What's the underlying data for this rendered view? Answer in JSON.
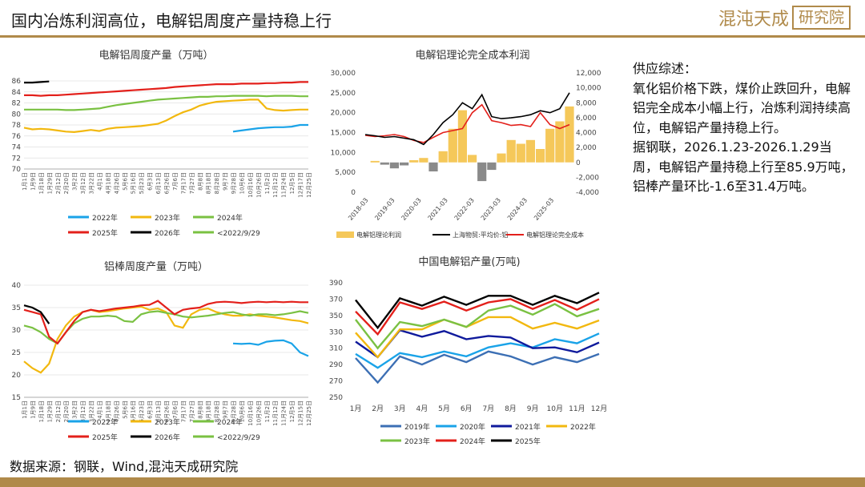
{
  "header": {
    "title": "国内冶炼利润高位，电解铝周度产量持稳上行"
  },
  "logo": {
    "part1": "混沌天成",
    "part2": "研究院"
  },
  "summary": {
    "heading": "供应综述：",
    "paragraph1": "氧化铝价格下跌，煤价止跌回升，电解铝完全成本小幅上行，冶炼利润持续高位，电解铝产量持稳上行。",
    "paragraph2": "据钢联，2026.1.23-2026.1.29当周，电解铝产量持稳上行至85.9万吨，铝棒产量环比-1.6至31.4万吨。"
  },
  "source": "数据来源：钢联，Wind,混沌天成研究院",
  "chart_data": [
    {
      "type": "line",
      "title": "电解铝周度产量（万吨）",
      "x_labels": [
        "1月1日",
        "1月9日",
        "1月18日",
        "1月29日",
        "2月12日",
        "2月20日",
        "3月2日",
        "3月12日",
        "3月22日",
        "4月1日",
        "4月18日",
        "4月26日",
        "5月6日",
        "5月16日",
        "5月23日",
        "6月3日",
        "6月13日",
        "6月26日",
        "7月6日",
        "7月17日",
        "7月27日",
        "8月8日",
        "8月18日",
        "8月28日",
        "9月7日",
        "9月28日",
        "10月6日",
        "10月16日",
        "10月26日",
        "11月2日",
        "11月12日",
        "11月24日",
        "12月5日",
        "12月17日",
        "12月25日"
      ],
      "ylim": [
        70,
        86
      ],
      "yticks": [
        70,
        72,
        74,
        76,
        78,
        80,
        82,
        84,
        86
      ],
      "series": [
        {
          "name": "2022年",
          "color": "#1aa3e8",
          "values": [
            null,
            null,
            null,
            null,
            null,
            null,
            null,
            null,
            null,
            null,
            null,
            null,
            null,
            null,
            null,
            null,
            null,
            null,
            null,
            null,
            null,
            null,
            null,
            null,
            null,
            76.8,
            77,
            77.2,
            77.4,
            77.5,
            77.6,
            77.6,
            77.7,
            78,
            78
          ]
        },
        {
          "name": "2023年",
          "color": "#f2b80f",
          "values": [
            77.5,
            77.2,
            77.3,
            77.2,
            77,
            76.8,
            76.7,
            76.9,
            77.1,
            76.9,
            77.3,
            77.5,
            77.6,
            77.7,
            77.8,
            78,
            78.2,
            78.8,
            79.6,
            80.3,
            80.8,
            81.5,
            81.9,
            82.2,
            82.3,
            82.4,
            82.5,
            82.6,
            82.6,
            81,
            80.7,
            80.6,
            80.7,
            80.8,
            80.8
          ]
        },
        {
          "name": "2024年",
          "color": "#7ac142",
          "values": [
            80.8,
            80.8,
            80.8,
            80.8,
            80.8,
            80.7,
            80.7,
            80.8,
            80.9,
            81,
            81.3,
            81.6,
            81.8,
            82,
            82.2,
            82.4,
            82.6,
            82.7,
            82.8,
            82.9,
            83,
            83.1,
            83.1,
            83.2,
            83.2,
            83.3,
            83.3,
            83.3,
            83.3,
            83.2,
            83.3,
            83.3,
            83.3,
            83.2,
            83.2
          ]
        },
        {
          "name": "2025年",
          "color": "#e3201b",
          "values": [
            83.4,
            83.4,
            83.3,
            83.4,
            83.4,
            83.5,
            83.6,
            83.7,
            83.8,
            83.9,
            84,
            84.1,
            84.2,
            84.3,
            84.4,
            84.5,
            84.6,
            84.7,
            84.9,
            85,
            85.1,
            85.2,
            85.3,
            85.4,
            85.4,
            85.4,
            85.5,
            85.5,
            85.5,
            85.6,
            85.6,
            85.7,
            85.7,
            85.8,
            85.8
          ]
        },
        {
          "name": "2026年",
          "color": "#000000",
          "values": [
            85.7,
            85.7,
            85.8,
            85.9,
            null,
            null,
            null,
            null,
            null,
            null,
            null,
            null,
            null,
            null,
            null,
            null,
            null,
            null,
            null,
            null,
            null,
            null,
            null,
            null,
            null,
            null,
            null,
            null,
            null,
            null,
            null,
            null,
            null,
            null,
            null
          ]
        },
        {
          "name": "<2022/9/29",
          "color": "#7ac142",
          "values": []
        }
      ]
    },
    {
      "type": "line",
      "title": "电解铝理论完全成本利润",
      "x_labels": [
        "2018-03",
        "2019-03",
        "2020-03",
        "2021-03",
        "2022-03",
        "2023-03",
        "2024-03",
        "2025-03"
      ],
      "ylim_left": [
        0,
        30000
      ],
      "yticks_left": [
        "0",
        "5,000",
        "10,000",
        "15,000",
        "20,000",
        "25,000",
        "30,000"
      ],
      "ylim_right": [
        -4000,
        12000
      ],
      "yticks_right": [
        "-4,000",
        "-2,000",
        "0",
        "2,000",
        "4,000",
        "6,000",
        "8,000",
        "10,000",
        "12,000"
      ],
      "series": [
        {
          "name": "电解铝理论利润",
          "color": "#f5c85a",
          "axis": "right",
          "values": [
            0,
            200,
            -300,
            -800,
            -400,
            300,
            600,
            -1200,
            1500,
            4500,
            7000,
            1000,
            -2500,
            -1000,
            1200,
            3000,
            2500,
            3000,
            1800,
            4500,
            5500,
            7500
          ]
        },
        {
          "name": "上海物贸:平均价:铝",
          "color": "#000000",
          "axis": "left",
          "values": [
            14500,
            14200,
            13800,
            14000,
            13600,
            13200,
            12000,
            14500,
            17500,
            19500,
            22500,
            21000,
            24500,
            19000,
            18500,
            18700,
            19000,
            19500,
            20500,
            20000,
            21000,
            25000
          ]
        },
        {
          "name": "电解铝理论完全成本",
          "color": "#e3201b",
          "axis": "left",
          "values": [
            14300,
            14000,
            14200,
            14500,
            14000,
            13000,
            12500,
            13800,
            15000,
            15500,
            16000,
            20000,
            22000,
            18000,
            17500,
            16800,
            17000,
            16500,
            20000,
            17000,
            16000,
            17000
          ]
        }
      ]
    },
    {
      "type": "line",
      "title": "铝棒周度产量（万吨）",
      "x_labels": [
        "1月1日",
        "1月9日",
        "1月18日",
        "1月29日",
        "2月12日",
        "2月20日",
        "3月2日",
        "3月12日",
        "3月22日",
        "4月1日",
        "4月18日",
        "4月26日",
        "5月6日",
        "5月16日",
        "5月23日",
        "6月3日",
        "6月13日",
        "6月26日",
        "7月6日",
        "7月17日",
        "7月27日",
        "8月8日",
        "8月18日",
        "8月28日",
        "9月7日",
        "9月28日",
        "10月6日",
        "10月16日",
        "10月26日",
        "11月2日",
        "11月12日",
        "11月24日",
        "12月5日",
        "12月15日",
        "12月25日"
      ],
      "ylim": [
        15,
        40
      ],
      "yticks": [
        15,
        20,
        25,
        30,
        35,
        40
      ],
      "series": [
        {
          "name": "2022年",
          "color": "#1aa3e8",
          "values": [
            null,
            null,
            null,
            null,
            null,
            null,
            null,
            null,
            null,
            null,
            null,
            null,
            null,
            null,
            null,
            null,
            null,
            null,
            null,
            null,
            null,
            null,
            null,
            null,
            null,
            27,
            26.9,
            27,
            26.7,
            27.4,
            27.6,
            27.7,
            27,
            25,
            24.2
          ]
        },
        {
          "name": "2023年",
          "color": "#f2b80f",
          "values": [
            23,
            21.5,
            20.5,
            22.5,
            28,
            31,
            33,
            34,
            34.5,
            34,
            34.2,
            34.5,
            34.8,
            35,
            35.2,
            34.5,
            34.8,
            34,
            31,
            30.5,
            33.5,
            34.5,
            34.8,
            34,
            33.5,
            33.2,
            33.2,
            33.5,
            33.2,
            33,
            32.8,
            32.5,
            32.2,
            32,
            31.5
          ]
        },
        {
          "name": "2024年",
          "color": "#7ac142",
          "values": [
            31,
            30.5,
            29.5,
            28,
            27,
            29.5,
            31.5,
            32.5,
            33,
            33,
            33.2,
            33,
            32,
            31.8,
            33.5,
            34,
            34.2,
            33.8,
            33.5,
            33,
            32.8,
            33,
            33.2,
            33.5,
            33.8,
            34,
            33.5,
            33.2,
            33.5,
            33.5,
            33.3,
            33.5,
            33.8,
            34.2,
            33.8
          ]
        },
        {
          "name": "2025年",
          "color": "#e3201b",
          "values": [
            34.5,
            34,
            33.5,
            28.5,
            27,
            29.5,
            32,
            34,
            34.5,
            34.2,
            34.5,
            34.8,
            35,
            35.2,
            35.5,
            35.6,
            36.5,
            35,
            33.5,
            34.5,
            34.8,
            35,
            35.8,
            36.2,
            36.3,
            36.2,
            36,
            36.2,
            36.3,
            36.2,
            36.3,
            36.2,
            36.3,
            36.2,
            36.2
          ]
        },
        {
          "name": "2026年",
          "color": "#000000",
          "values": [
            35.5,
            35,
            34,
            31.4,
            null,
            null,
            null,
            null,
            null,
            null,
            null,
            null,
            null,
            null,
            null,
            null,
            null,
            null,
            null,
            null,
            null,
            null,
            null,
            null,
            null,
            null,
            null,
            null,
            null,
            null,
            null,
            null,
            null,
            null,
            null
          ]
        },
        {
          "name": "<2022/9/29",
          "color": "#7ac142",
          "values": []
        }
      ]
    },
    {
      "type": "line",
      "title": "中国电解铝产量(万吨)",
      "categories": [
        "1月",
        "2月",
        "3月",
        "4月",
        "5月",
        "6月",
        "7月",
        "8月",
        "9月",
        "10月",
        "11月",
        "12月"
      ],
      "ylim": [
        250,
        390
      ],
      "yticks": [
        250,
        270,
        290,
        310,
        330,
        350,
        370,
        390
      ],
      "series": [
        {
          "name": "2019年",
          "color": "#3c6fb4",
          "values": [
            298,
            268,
            300,
            290,
            302,
            293,
            306,
            300,
            290,
            299,
            293,
            303
          ]
        },
        {
          "name": "2020年",
          "color": "#1aa3e8",
          "values": [
            303,
            286,
            304,
            299,
            306,
            300,
            311,
            316,
            311,
            321,
            316,
            328
          ]
        },
        {
          "name": "2021年",
          "color": "#0f1a9c",
          "values": [
            318,
            299,
            332,
            324,
            331,
            321,
            325,
            323,
            310,
            311,
            305,
            317
          ]
        },
        {
          "name": "2022年",
          "color": "#f2b80f",
          "values": [
            329,
            299,
            333,
            333,
            345,
            336,
            348,
            348,
            334,
            341,
            334,
            344
          ]
        },
        {
          "name": "2023年",
          "color": "#7ac142",
          "values": [
            345,
            310,
            342,
            337,
            345,
            336,
            356,
            362,
            351,
            364,
            349,
            358
          ]
        },
        {
          "name": "2024年",
          "color": "#e3201b",
          "values": [
            355,
            327,
            366,
            358,
            367,
            356,
            366,
            370,
            358,
            369,
            357,
            370
          ]
        },
        {
          "name": "2025年",
          "color": "#000000",
          "values": [
            369,
            335,
            371,
            362,
            373,
            363,
            374,
            374,
            363,
            374,
            365,
            378
          ]
        }
      ]
    }
  ]
}
